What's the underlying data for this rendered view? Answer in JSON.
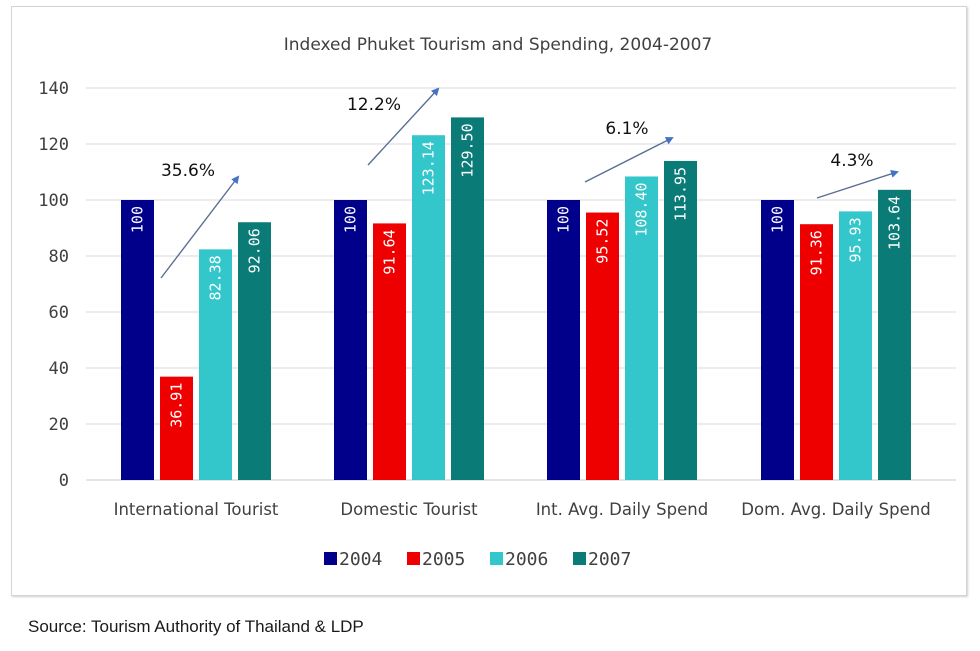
{
  "chart_data": {
    "type": "bar",
    "title": "Indexed Phuket Tourism and Spending, 2004-2007",
    "xlabel": "",
    "ylabel": "",
    "ylim": [
      0,
      140
    ],
    "yticks": [
      0,
      20,
      40,
      60,
      80,
      100,
      120,
      140
    ],
    "grid": true,
    "legend_position": "bottom",
    "categories": [
      "International Tourist",
      "Domestic Tourist",
      "Int. Avg. Daily Spend",
      "Dom. Avg. Daily Spend"
    ],
    "series": [
      {
        "name": "2004",
        "color": "#00008B",
        "values": [
          100,
          100,
          100,
          100
        ],
        "labels": [
          "100",
          "100",
          "100",
          "100"
        ]
      },
      {
        "name": "2005",
        "color": "#EE0000",
        "values": [
          36.91,
          91.64,
          95.52,
          91.36
        ],
        "labels": [
          "36.91",
          "91.64",
          "95.52",
          "91.36"
        ]
      },
      {
        "name": "2006",
        "color": "#33C7CC",
        "values": [
          82.38,
          123.14,
          108.4,
          95.93
        ],
        "labels": [
          "82.38",
          "123.14",
          "108.40",
          "95.93"
        ]
      },
      {
        "name": "2007",
        "color": "#0B7B78",
        "values": [
          92.06,
          129.5,
          113.95,
          103.64
        ],
        "labels": [
          "92.06",
          "129.50",
          "113.95",
          "103.64"
        ]
      }
    ],
    "annotations": [
      {
        "category": "International Tourist",
        "text": "35.6%",
        "type": "growth-arrow"
      },
      {
        "category": "Domestic Tourist",
        "text": "12.2%",
        "type": "growth-arrow"
      },
      {
        "category": "Int. Avg. Daily Spend",
        "text": "6.1%",
        "type": "growth-arrow"
      },
      {
        "category": "Dom. Avg. Daily Spend",
        "text": "4.3%",
        "type": "growth-arrow"
      }
    ],
    "arrow_color": "#4472C4"
  },
  "source": "Source: Tourism Authority of Thailand & LDP"
}
